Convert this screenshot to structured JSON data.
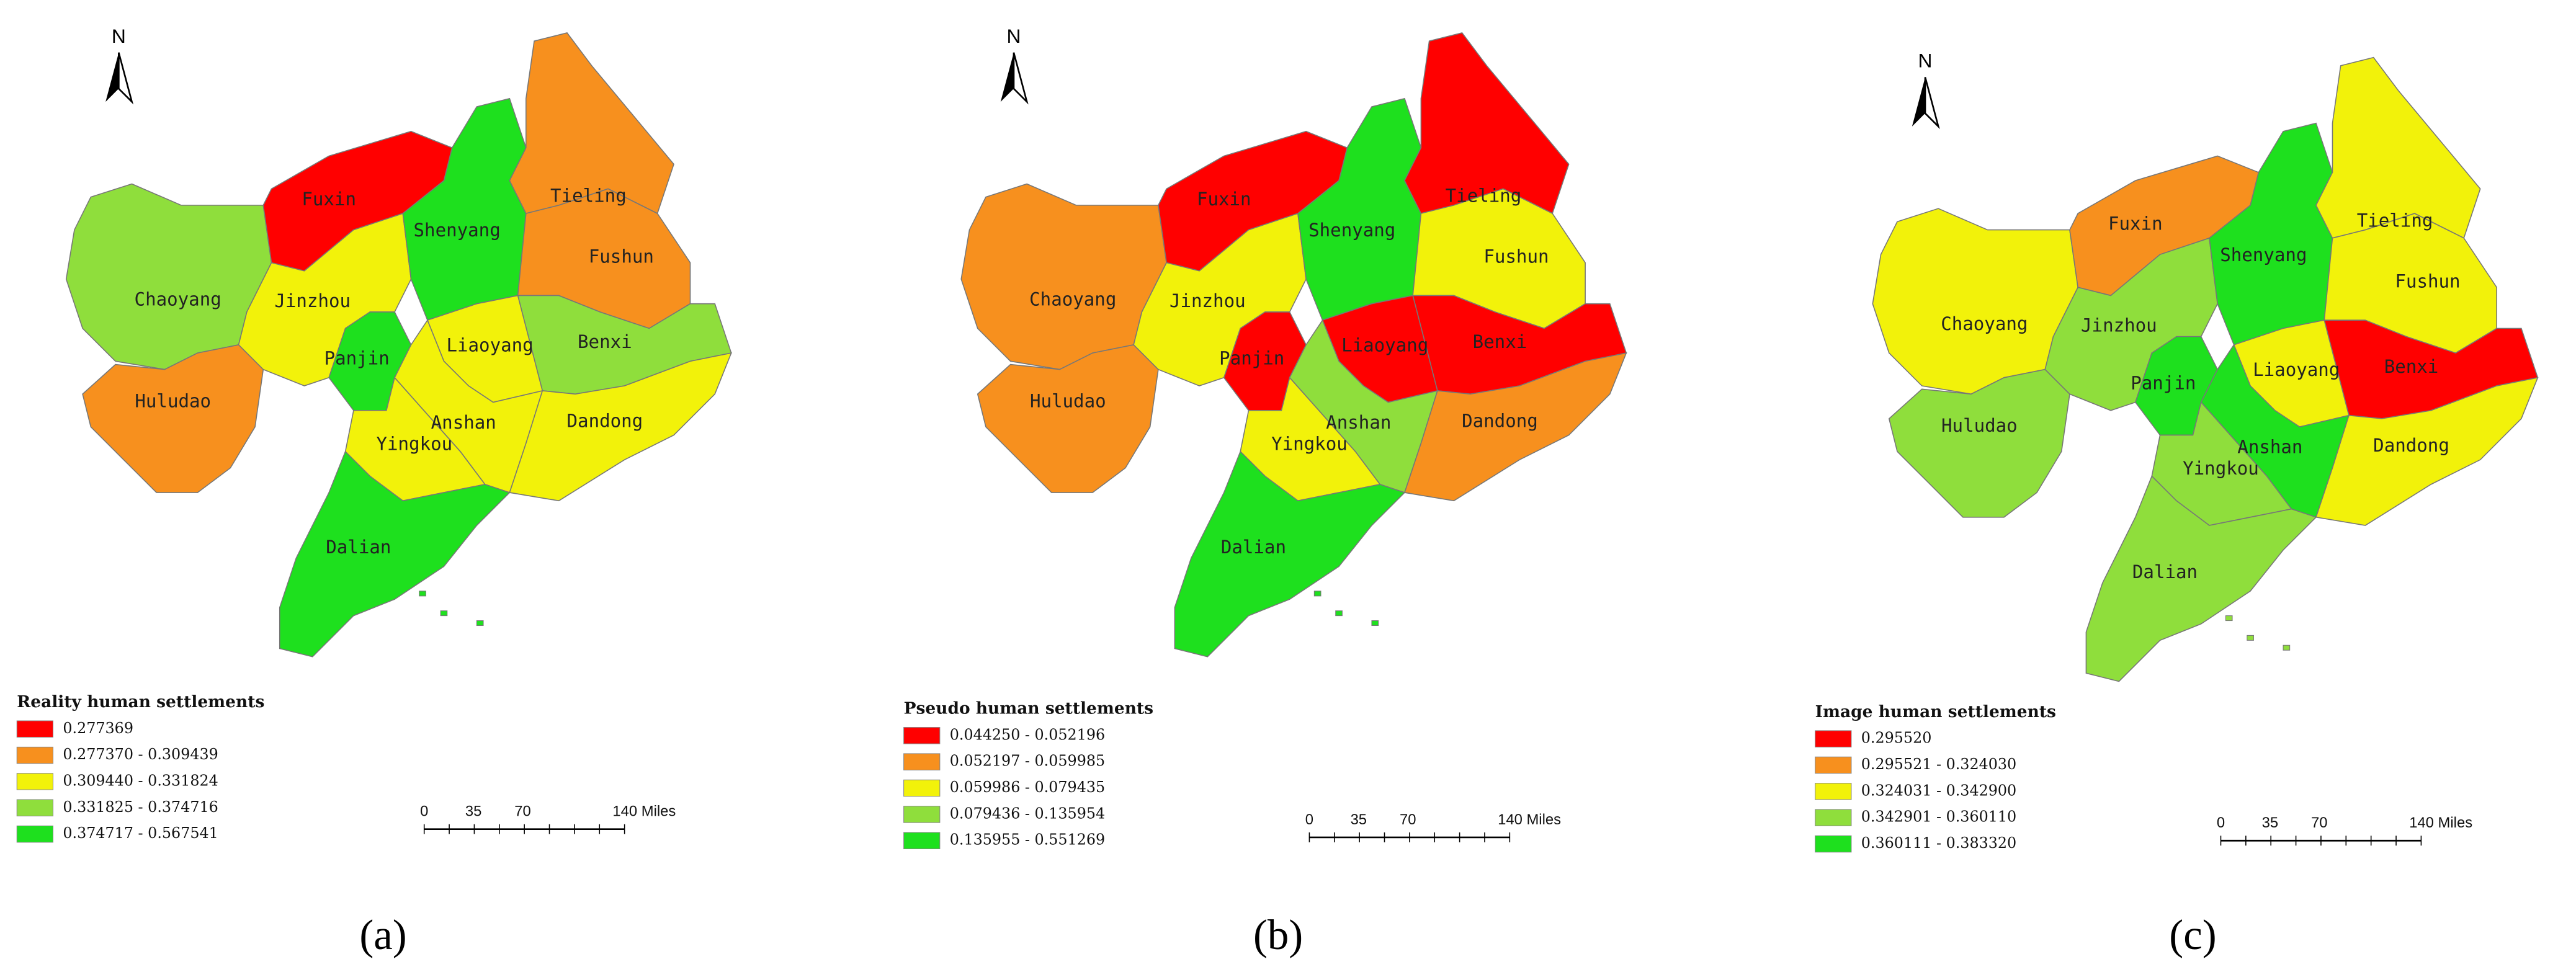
{
  "maps": [
    {
      "north": "N",
      "caption": "(a)",
      "legend_title": "Reality human settlements",
      "legend": [
        {
          "label": "0.277369",
          "color": "#ff0000"
        },
        {
          "label": "0.277370 - 0.309439",
          "color": "#f7901e"
        },
        {
          "label": "0.309440 - 0.331824",
          "color": "#f2f20a"
        },
        {
          "label": "0.331825 - 0.374716",
          "color": "#8fde3c"
        },
        {
          "label": "0.374717 - 0.567541",
          "color": "#1ee01e"
        }
      ],
      "scale": [
        "0",
        "35",
        "70",
        "140 Miles"
      ],
      "regions": [
        {
          "name": "Chaoyang",
          "color": "#8fde3c"
        },
        {
          "name": "Huludao",
          "color": "#f7901e"
        },
        {
          "name": "Fuxin",
          "color": "#ff0000"
        },
        {
          "name": "Jinzhou",
          "color": "#f2f20a"
        },
        {
          "name": "Shenyang",
          "color": "#1ee01e"
        },
        {
          "name": "Panjin",
          "color": "#1ee01e"
        },
        {
          "name": "Tieling",
          "color": "#f7901e"
        },
        {
          "name": "Fushun",
          "color": "#f7901e"
        },
        {
          "name": "Benxi",
          "color": "#8fde3c"
        },
        {
          "name": "Liaoyang",
          "color": "#f2f20a"
        },
        {
          "name": "Anshan",
          "color": "#f2f20a"
        },
        {
          "name": "Yingkou",
          "color": "#f2f20a"
        },
        {
          "name": "Dandong",
          "color": "#f2f20a"
        },
        {
          "name": "Dalian",
          "color": "#1ee01e"
        }
      ]
    },
    {
      "north": "N",
      "caption": "(b)",
      "legend_title": "Pseudo human settlements",
      "legend": [
        {
          "label": "0.044250 - 0.052196",
          "color": "#ff0000"
        },
        {
          "label": "0.052197 - 0.059985",
          "color": "#f7901e"
        },
        {
          "label": "0.059986 - 0.079435",
          "color": "#f2f20a"
        },
        {
          "label": "0.079436 - 0.135954",
          "color": "#8fde3c"
        },
        {
          "label": "0.135955 - 0.551269",
          "color": "#1ee01e"
        }
      ],
      "scale": [
        "0",
        "35",
        "70",
        "140 Miles"
      ],
      "regions": [
        {
          "name": "Chaoyang",
          "color": "#f7901e"
        },
        {
          "name": "Huludao",
          "color": "#f7901e"
        },
        {
          "name": "Fuxin",
          "color": "#ff0000"
        },
        {
          "name": "Jinzhou",
          "color": "#f2f20a"
        },
        {
          "name": "Shenyang",
          "color": "#1ee01e"
        },
        {
          "name": "Panjin",
          "color": "#ff0000"
        },
        {
          "name": "Tieling",
          "color": "#ff0000"
        },
        {
          "name": "Fushun",
          "color": "#f2f20a"
        },
        {
          "name": "Benxi",
          "color": "#ff0000"
        },
        {
          "name": "Liaoyang",
          "color": "#ff0000"
        },
        {
          "name": "Anshan",
          "color": "#8fde3c"
        },
        {
          "name": "Yingkou",
          "color": "#f2f20a"
        },
        {
          "name": "Dandong",
          "color": "#f7901e"
        },
        {
          "name": "Dalian",
          "color": "#1ee01e"
        }
      ]
    },
    {
      "north": "N",
      "caption": "(c)",
      "legend_title": "Image human settlements",
      "legend": [
        {
          "label": "0.295520",
          "color": "#ff0000"
        },
        {
          "label": "0.295521 - 0.324030",
          "color": "#f7901e"
        },
        {
          "label": "0.324031 - 0.342900",
          "color": "#f2f20a"
        },
        {
          "label": "0.342901 - 0.360110",
          "color": "#8fde3c"
        },
        {
          "label": "0.360111 - 0.383320",
          "color": "#1ee01e"
        }
      ],
      "scale": [
        "0",
        "35",
        "70",
        "140 Miles"
      ],
      "regions": [
        {
          "name": "Chaoyang",
          "color": "#f2f20a"
        },
        {
          "name": "Huludao",
          "color": "#8fde3c"
        },
        {
          "name": "Fuxin",
          "color": "#f7901e"
        },
        {
          "name": "Jinzhou",
          "color": "#8fde3c"
        },
        {
          "name": "Shenyang",
          "color": "#1ee01e"
        },
        {
          "name": "Panjin",
          "color": "#1ee01e"
        },
        {
          "name": "Tieling",
          "color": "#f2f20a"
        },
        {
          "name": "Fushun",
          "color": "#f2f20a"
        },
        {
          "name": "Benxi",
          "color": "#ff0000"
        },
        {
          "name": "Liaoyang",
          "color": "#f2f20a"
        },
        {
          "name": "Anshan",
          "color": "#1ee01e"
        },
        {
          "name": "Yingkou",
          "color": "#8fde3c"
        },
        {
          "name": "Dandong",
          "color": "#f2f20a"
        },
        {
          "name": "Dalian",
          "color": "#8fde3c"
        }
      ]
    }
  ]
}
